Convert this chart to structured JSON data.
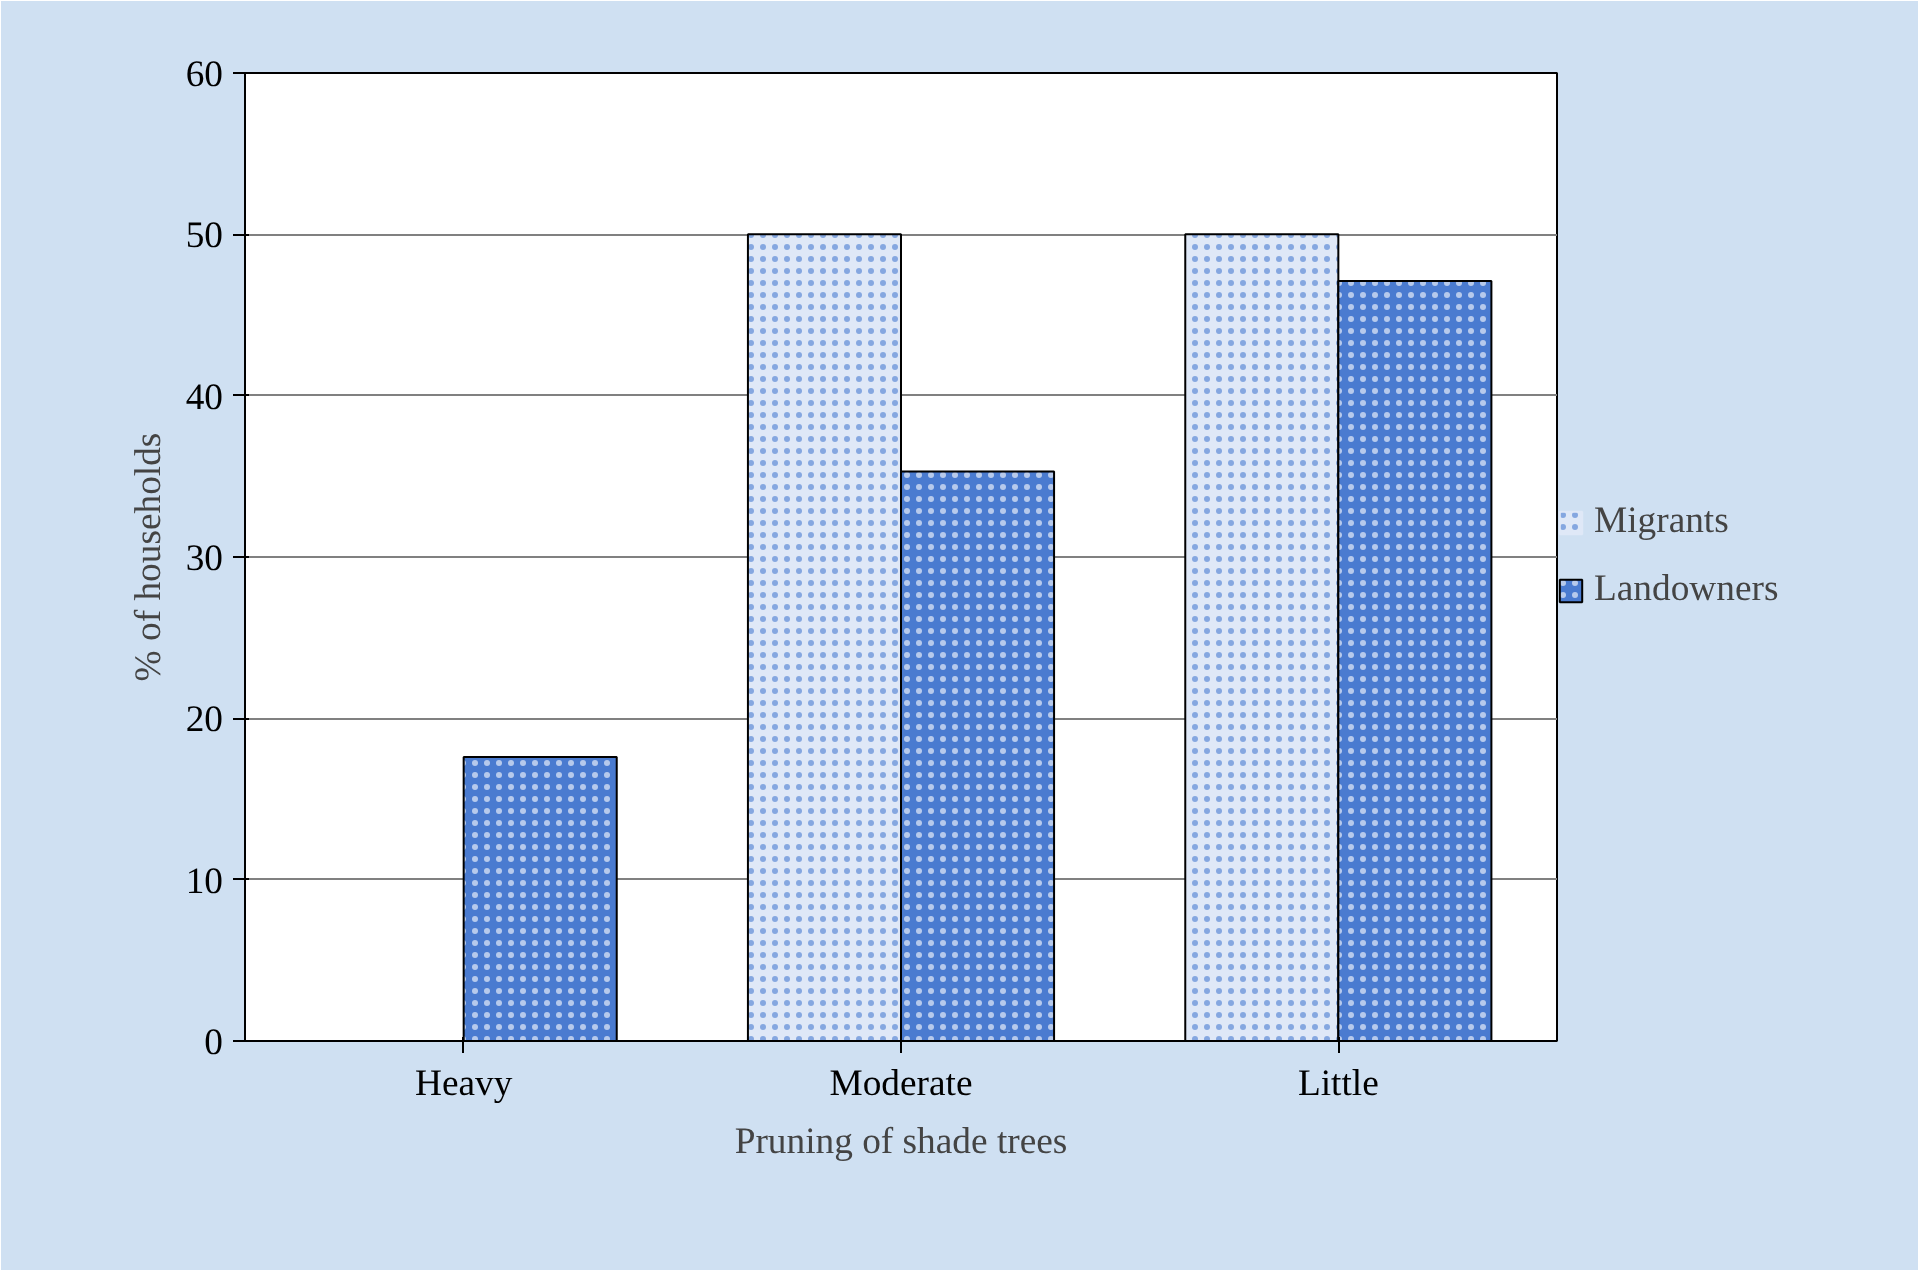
{
  "chart_data": {
    "type": "bar",
    "xlabel": "Pruning of shade trees",
    "ylabel": "% of households",
    "categories": [
      "Heavy",
      "Moderate",
      "Little"
    ],
    "series": [
      {
        "name": "Migrants",
        "color": "#dfe8f7",
        "values": [
          0,
          50,
          50
        ]
      },
      {
        "name": "Landowners",
        "color": "#4a7bd0",
        "values": [
          17.6,
          35.3,
          47.1
        ]
      }
    ],
    "ylim": [
      0,
      60
    ],
    "yticks": [
      0,
      10,
      20,
      30,
      40,
      50,
      60
    ],
    "grid": "y",
    "legend": "right"
  }
}
